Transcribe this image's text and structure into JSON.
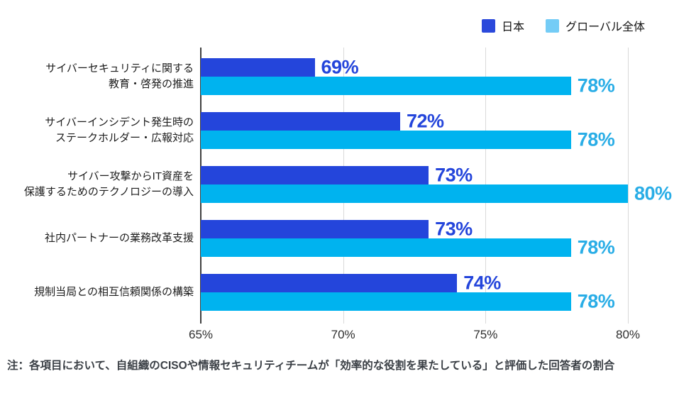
{
  "legend": {
    "items": [
      {
        "label": "日本",
        "swatch_color": "#2b49db"
      },
      {
        "label": "グローバル全体",
        "swatch_color": "#74ccf6"
      }
    ]
  },
  "chart_data": {
    "type": "bar",
    "orientation": "horizontal",
    "title": "",
    "categories": [
      "サイバーセキュリティに関する\n教育・啓発の推進",
      "サイバーインシデント発生時の\nステークホルダー・広報対応",
      "サイバー攻撃からIT資産を\n保護するためのテクノロジーの導入",
      "社内パートナーの業務改革支援",
      "規制当局との相互信頼関係の構築"
    ],
    "series": [
      {
        "name": "日本",
        "color": "#2445db",
        "label_color": "#2445db",
        "values": [
          69,
          72,
          73,
          73,
          74
        ]
      },
      {
        "name": "グローバル全体",
        "color": "#00b3ef",
        "label_color": "#29ade6",
        "values": [
          78,
          78,
          80,
          78,
          78
        ]
      }
    ],
    "value_suffix": "%",
    "x_axis": {
      "min": 65,
      "max": 80,
      "tick_values": [
        65,
        70,
        75,
        80
      ],
      "tick_labels": [
        "65%",
        "70%",
        "75%",
        "80%"
      ]
    },
    "grid": true,
    "legend_position": "top-right"
  },
  "note": "注：各項目において、自組織のCISOや情報セキュリティチームが「効率的な役割を果たしている」と評価した回答者の割合"
}
